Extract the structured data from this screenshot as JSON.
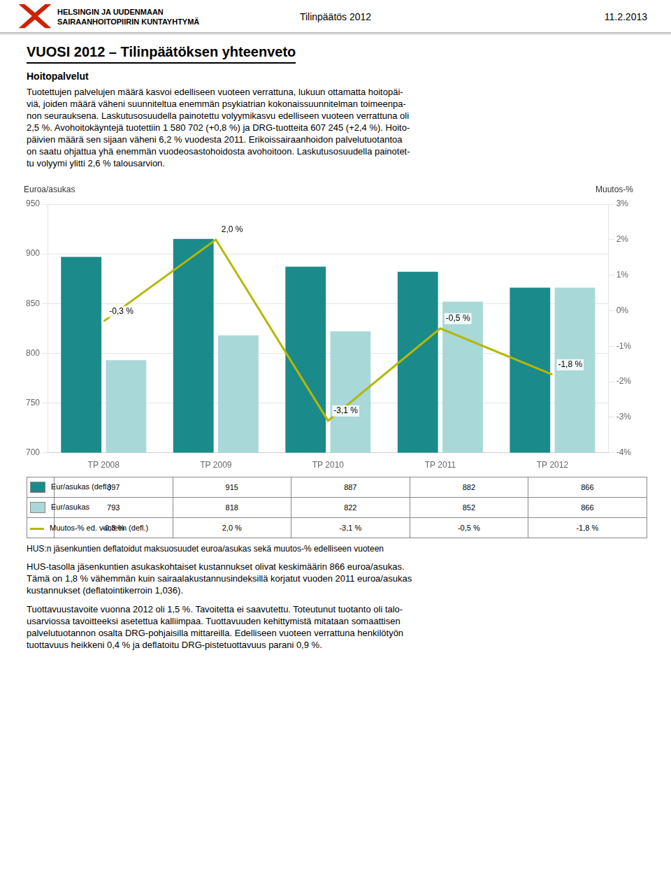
{
  "header_org": [
    "HELSINGIN JA UUDENMAAN",
    "SAIRAANHOITOPIIRIN KUNTAYHTYMÄ"
  ],
  "header_center": "Tilinpäätös 2012",
  "header_right": "11.2.2013",
  "title": "VUOSI 2012 – Tilinpäätöksen yhteenveto",
  "section_title": "Hoitopalvelut",
  "body_text1": [
    "Tuotettujen palvelujen määrä kasvoi edelliseen vuoteen verrattuna, lukuun ottamatta hoitopäi-",
    "viä, joiden määrä väheni suunniteltua enemmän psykiatrian kokonaissuunnitelman toimeenpa-",
    "non seurauksena. Laskutusosuudella painotettu volyymikasvu edelliseen vuoteen verrattuna oli",
    "2,5 %. Avohoitokäyntejä tuotettiin 1 580 702 (+0,8 %) ja DRG-tuotteita 607 245 (+2,4 %). Hoito-",
    "päivien määrä sen sijaan väheni 6,2 % vuodesta 2011. Erikoissairaanhoidon palvelutuotantoa",
    "on saatu ohjattua yhä enemmän vuodeosastohoidosta avohoitoon. Laskutusosuudella painotet-",
    "tu volyymi ylitti 2,6 % talousarvion."
  ],
  "caption": "HUS:n jäsenkuntien deflatoidut maksuosuudet euroa/asukas sekä muutos-% edelliseen vuoteen",
  "body_text2": [
    "HUS-tasolla jäsenkuntien asukaskohtaiset kustannukset olivat keskimäärin 866 euroa/asukas.",
    "Tämä on 1,8 % vähemmän kuin sairaalakustannusindeksillä korjatut vuoden 2011 euroa/asukas",
    "kustannukset (deflatointikerroin 1,036)."
  ],
  "body_text3": [
    "Tuottavuustavoite vuonna 2012 oli 1,5 %. Tavoitetta ei saavutettu. Toteutunut tuotanto oli talo-",
    "usarviossa tavoitteeksi asetettua kalliimpaa. Tuottavuuden kehittymistä mitataan somaattisen",
    "palvelutuotannon osalta DRG-pohjaisilla mittareilla. Edelliseen vuoteen verrattuna henkilötyön",
    "tuottavuus heikkeni 0,4 % ja deflatoitu DRG-pistetuottavuus parani 0,9 %."
  ],
  "chart_data": {
    "type": "bar",
    "categories": [
      "TP 2008",
      "TP 2009",
      "TP 2010",
      "TP 2011",
      "TP 2012"
    ],
    "series": [
      {
        "name": "Eur/asukas (defl.)",
        "type": "bar",
        "color": "#1a8a8a",
        "values": [
          897,
          915,
          887,
          882,
          866
        ]
      },
      {
        "name": "Eur/asukas",
        "type": "bar",
        "color": "#a8d8d8",
        "values": [
          793,
          818,
          822,
          852,
          866
        ]
      },
      {
        "name": "Muutos-% ed. vuoteen (defl.)",
        "type": "line",
        "axis": "y2",
        "color": "#b5b800",
        "marker": "none",
        "data_labels": true,
        "values": [
          -0.3,
          2.0,
          -3.1,
          -0.5,
          -1.8
        ],
        "value_labels": [
          "-0,3 %",
          "2,0 %",
          "-3,1 %",
          "-0,5 %",
          "-1,8 %"
        ]
      }
    ],
    "ylabel": "Euroa/asukas",
    "y2label": "Muutos-%",
    "ylim": [
      700,
      950
    ],
    "yticks": [
      700,
      750,
      800,
      850,
      900,
      950
    ],
    "y2lim": [
      -4,
      3
    ],
    "y2ticks": [
      {
        "value": -4,
        "label": "-4%"
      },
      {
        "value": -3,
        "label": "-3%"
      },
      {
        "value": -2,
        "label": "-2%"
      },
      {
        "value": -1,
        "label": "-1%"
      },
      {
        "value": 0,
        "label": "0%"
      },
      {
        "value": 1,
        "label": "1%"
      },
      {
        "value": 2,
        "label": "2%"
      },
      {
        "value": 3,
        "label": "3%"
      }
    ],
    "grid": true
  }
}
